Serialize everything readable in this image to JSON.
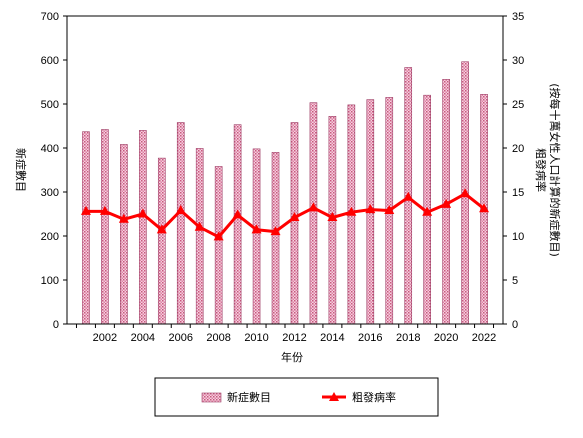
{
  "chart_data": {
    "type": "bar+line",
    "x": [
      2001,
      2002,
      2003,
      2004,
      2005,
      2006,
      2007,
      2008,
      2009,
      2010,
      2011,
      2012,
      2013,
      2014,
      2015,
      2016,
      2017,
      2018,
      2019,
      2020,
      2021,
      2022
    ],
    "x_tick_labels": [
      "2002",
      "2004",
      "2006",
      "2008",
      "2010",
      "2012",
      "2014",
      "2016",
      "2018",
      "2020",
      "2022"
    ],
    "xlabel": "年份",
    "ylabel_left": "新症數目",
    "ylabel_right_line1": "粗發病率",
    "ylabel_right_line2": "(按每十萬女性人口計算的新症數目)",
    "ylim_left": [
      0,
      700
    ],
    "ylim_right": [
      0,
      35
    ],
    "yticks_left": [
      "0",
      "100",
      "200",
      "300",
      "400",
      "500",
      "600",
      "700"
    ],
    "yticks_right": [
      "0",
      "5",
      "10",
      "15",
      "20",
      "25",
      "30",
      "35"
    ],
    "grid": false,
    "legend_position": "bottom",
    "series": [
      {
        "name": "新症數目",
        "kind": "bar",
        "axis": "left",
        "color": "#e8b4c8",
        "values": [
          437,
          442,
          408,
          440,
          377,
          458,
          399,
          358,
          453,
          398,
          390,
          458,
          503,
          472,
          498,
          510,
          515,
          583,
          520,
          556,
          596,
          522
        ]
      },
      {
        "name": "粗發病率",
        "kind": "line",
        "axis": "right",
        "color": "#ff0000",
        "values": [
          12.8,
          12.8,
          11.9,
          12.5,
          10.7,
          12.9,
          11.0,
          9.9,
          12.4,
          10.7,
          10.5,
          12.1,
          13.2,
          12.1,
          12.7,
          13.0,
          12.9,
          14.4,
          12.7,
          13.6,
          14.8,
          13.1
        ]
      }
    ]
  }
}
